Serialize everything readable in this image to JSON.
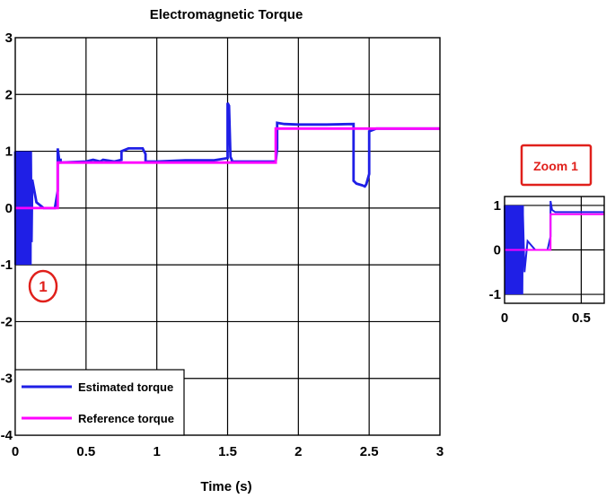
{
  "colors": {
    "estimated": "#1f1fe6",
    "reference": "#ff00ff",
    "annotation": "#e0201b",
    "grid": "#000000"
  },
  "chart_data": [
    {
      "type": "line",
      "title": "Electromagnetic Torque",
      "xlabel": "Time (s)",
      "ylabel": "",
      "xlim": [
        0,
        3
      ],
      "ylim": [
        -4,
        3
      ],
      "xticks": [
        0,
        0.5,
        1,
        1.5,
        2,
        2.5,
        3
      ],
      "xtick_labels": [
        "0",
        "0.5",
        "1",
        "1.5",
        "2",
        "2.5",
        "3"
      ],
      "yticks": [
        -4,
        -3,
        -2,
        -1,
        0,
        1,
        2,
        3
      ],
      "ytick_labels": [
        "-4",
        "-3",
        "-2",
        "-1",
        "0",
        "1",
        "2",
        "3"
      ],
      "grid": true,
      "legend_position": "bottom-left",
      "annotations": [
        {
          "text": "1",
          "x": 0.1,
          "y": -1.45
        }
      ],
      "series": [
        {
          "name": "Estimated torque",
          "oscillation": {
            "x_start": 0.0,
            "x_end": 0.11,
            "y_min": -1.0,
            "y_max": 1.0
          },
          "x": [
            0.11,
            0.115,
            0.12,
            0.15,
            0.2,
            0.28,
            0.3,
            0.3,
            0.31,
            0.32,
            0.32,
            0.5,
            0.55,
            0.6,
            0.62,
            0.7,
            0.75,
            0.75,
            0.8,
            0.9,
            0.92,
            0.92,
            1.0,
            1.2,
            1.4,
            1.5,
            1.5,
            1.51,
            1.52,
            1.53,
            1.53,
            1.6,
            1.7,
            1.84,
            1.85,
            1.85,
            1.9,
            2.0,
            2.2,
            2.39,
            2.39,
            2.41,
            2.45,
            2.47,
            2.48,
            2.5,
            2.5,
            2.55,
            2.7,
            3.0
          ],
          "y": [
            1.0,
            -0.6,
            0.5,
            0.1,
            0.0,
            0.0,
            0.3,
            1.05,
            0.85,
            0.85,
            0.8,
            0.82,
            0.85,
            0.82,
            0.85,
            0.82,
            0.85,
            1.0,
            1.05,
            1.05,
            0.95,
            0.82,
            0.82,
            0.84,
            0.84,
            0.88,
            1.85,
            1.8,
            0.9,
            0.85,
            0.82,
            0.82,
            0.82,
            0.82,
            1.05,
            1.5,
            1.48,
            1.47,
            1.47,
            1.48,
            0.48,
            0.43,
            0.4,
            0.38,
            0.42,
            0.6,
            1.35,
            1.4,
            1.4,
            1.4
          ]
        },
        {
          "name": "Reference torque",
          "x": [
            0.0,
            0.3,
            0.3,
            1.84,
            1.84,
            3.0
          ],
          "y": [
            0.0,
            0.0,
            0.8,
            0.8,
            1.4,
            1.4
          ]
        }
      ]
    },
    {
      "type": "line",
      "title": "Zoom 1",
      "xlabel": "",
      "ylabel": "",
      "xlim": [
        0,
        0.65
      ],
      "ylim": [
        -1.2,
        1.2
      ],
      "xticks": [
        0,
        0.5
      ],
      "xtick_labels": [
        "0",
        "0.5"
      ],
      "yticks": [
        -1,
        0,
        1
      ],
      "ytick_labels": [
        "-1",
        "0",
        "1"
      ],
      "grid": true,
      "series": [
        {
          "oscillation": {
            "x_start": 0.0,
            "x_end": 0.12,
            "y_min": -1.0,
            "y_max": 1.0
          },
          "x": [
            0.12,
            0.13,
            0.15,
            0.2,
            0.28,
            0.3,
            0.3,
            0.31,
            0.33,
            0.4,
            0.65
          ],
          "y": [
            0.8,
            -0.5,
            0.2,
            0.0,
            0.0,
            0.3,
            1.1,
            0.9,
            0.85,
            0.85,
            0.85
          ]
        },
        {
          "x": [
            0.0,
            0.3,
            0.3,
            0.65
          ],
          "y": [
            0.0,
            0.0,
            0.8,
            0.8
          ]
        }
      ]
    }
  ]
}
